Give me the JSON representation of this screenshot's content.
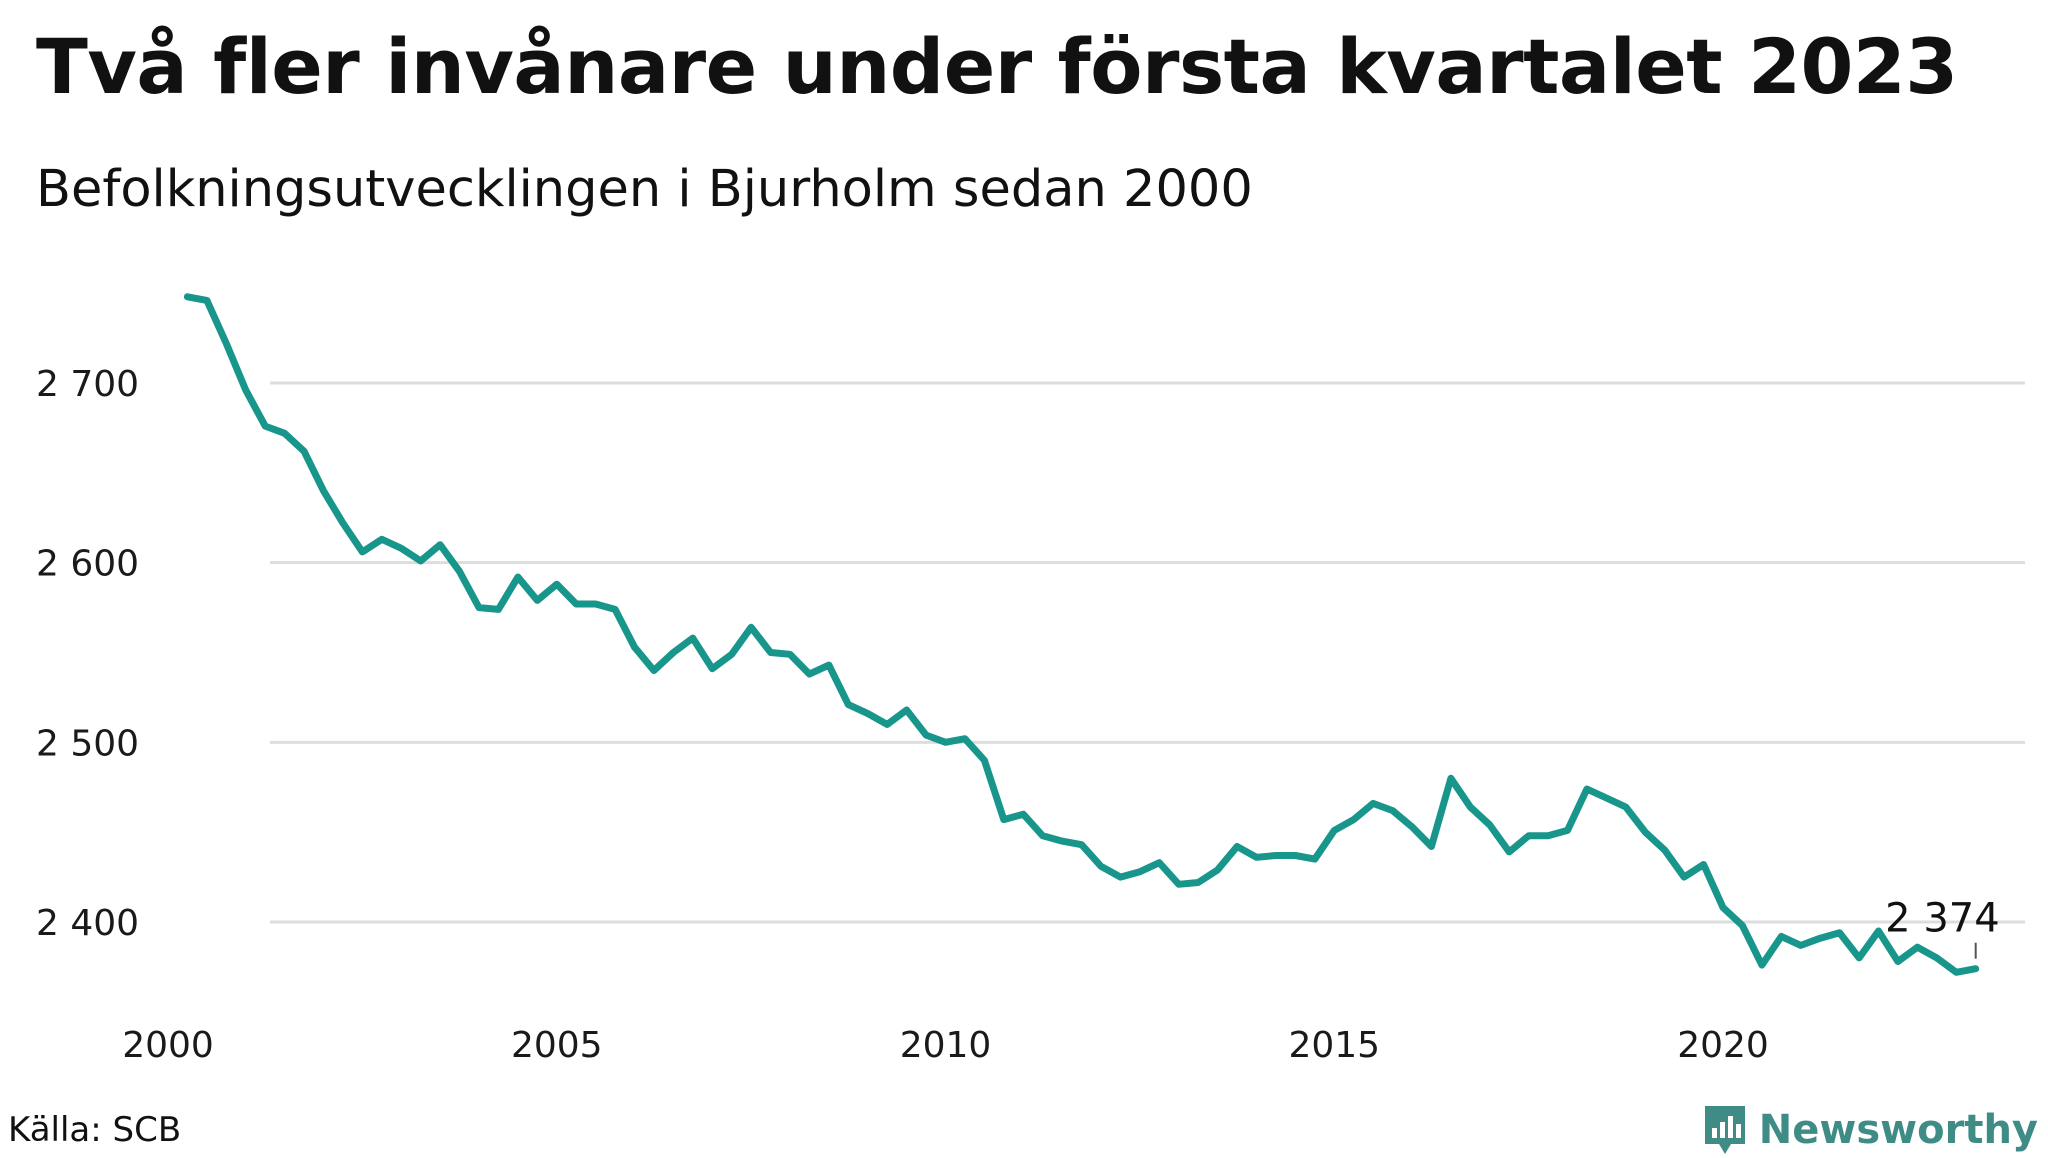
{
  "title": "Två fler invånare under första kvartalet 2023",
  "subtitle": "Befolkningsutvecklingen i Bjurholm sedan 2000",
  "source": "Källa: SCB",
  "brand": {
    "name": "Newsworthy",
    "icon": "newsworthy-logo-icon",
    "color": "#3f8c86"
  },
  "colors": {
    "line": "#19968b",
    "grid": "#dddddd"
  },
  "chart_data": {
    "type": "line",
    "title": "Två fler invånare under första kvartalet 2023",
    "subtitle": "Befolkningsutvecklingen i Bjurholm sedan 2000",
    "xlabel": "",
    "ylabel": "",
    "xlim": [
      2000,
      2023.25
    ],
    "ylim": [
      2358,
      2760
    ],
    "yticks": [
      2400,
      2500,
      2600,
      2700
    ],
    "ytick_labels": [
      "2 400",
      "2 500",
      "2 600",
      "2 700"
    ],
    "xticks": [
      2000,
      2005,
      2010,
      2015,
      2020
    ],
    "xtick_labels": [
      "2000",
      "2005",
      "2010",
      "2015",
      "2020"
    ],
    "grid": true,
    "legend": "none",
    "end_label": "2 374",
    "series": [
      {
        "x": [
          2000.25,
          2000.5,
          2000.75,
          2001.0,
          2001.25,
          2001.5,
          2001.75,
          2002.0,
          2002.25,
          2002.5,
          2002.75,
          2003.0,
          2003.25,
          2003.5,
          2003.75,
          2004.0,
          2004.25,
          2004.5,
          2004.75,
          2005.0,
          2005.25,
          2005.5,
          2005.75,
          2006.0,
          2006.25,
          2006.5,
          2006.75,
          2007.0,
          2007.25,
          2007.5,
          2007.75,
          2008.0,
          2008.25,
          2008.5,
          2008.75,
          2009.0,
          2009.25,
          2009.5,
          2009.75,
          2010.0,
          2010.25,
          2010.5,
          2010.75,
          2011.0,
          2011.25,
          2011.5,
          2011.75,
          2012.0,
          2012.25,
          2012.5,
          2012.75,
          2013.0,
          2013.25,
          2013.5,
          2013.75,
          2014.0,
          2014.25,
          2014.5,
          2014.75,
          2015.0,
          2015.25,
          2015.5,
          2015.75,
          2016.0,
          2016.25,
          2016.5,
          2016.75,
          2017.0,
          2017.25,
          2017.5,
          2017.75,
          2018.0,
          2018.25,
          2018.5,
          2018.75,
          2019.0,
          2019.25,
          2019.5,
          2019.75,
          2020.0,
          2020.25,
          2020.5,
          2020.75,
          2021.0,
          2021.25,
          2021.5,
          2021.75,
          2022.0,
          2022.25,
          2022.5,
          2022.75,
          2023.0,
          2023.25
        ],
        "values": [
          2748,
          2746,
          2722,
          2696,
          2676,
          2672,
          2662,
          2640,
          2622,
          2606,
          2613,
          2608,
          2601,
          2610,
          2595,
          2575,
          2574,
          2592,
          2579,
          2588,
          2577,
          2577,
          2574,
          2553,
          2540,
          2550,
          2558,
          2541,
          2549,
          2564,
          2550,
          2549,
          2538,
          2543,
          2521,
          2516,
          2510,
          2518,
          2504,
          2500,
          2502,
          2490,
          2457,
          2460,
          2448,
          2445,
          2443,
          2431,
          2425,
          2428,
          2433,
          2421,
          2422,
          2429,
          2442,
          2436,
          2437,
          2437,
          2435,
          2451,
          2457,
          2466,
          2462,
          2453,
          2442,
          2480,
          2464,
          2454,
          2439,
          2448,
          2448,
          2451,
          2474,
          2469,
          2464,
          2450,
          2440,
          2425,
          2432,
          2408,
          2398,
          2376,
          2392,
          2387,
          2391,
          2394,
          2380,
          2395,
          2378,
          2386,
          2380,
          2372,
          2374
        ]
      }
    ]
  }
}
